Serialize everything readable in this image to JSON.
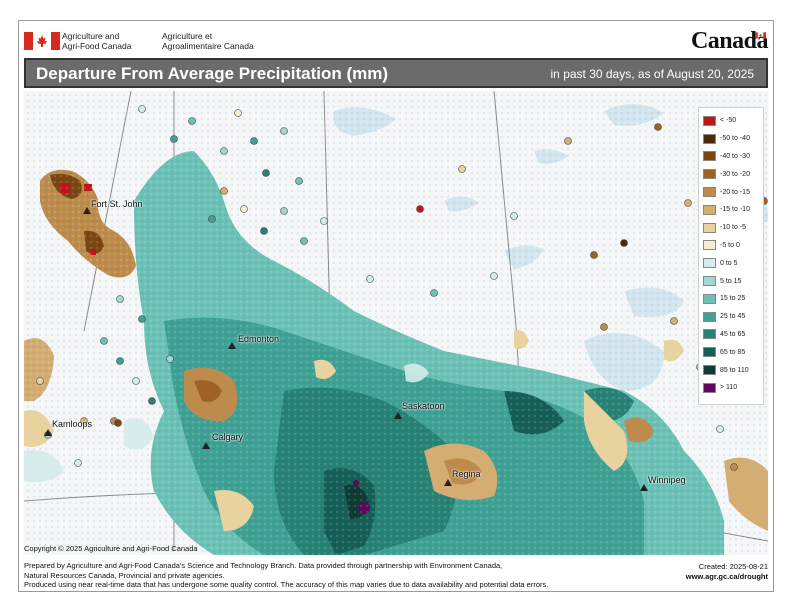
{
  "header": {
    "agency_en_line1": "Agriculture and",
    "agency_en_line2": "Agri-Food Canada",
    "agency_fr_line1": "Agriculture et",
    "agency_fr_line2": "Agroalimentaire Canada",
    "wordmark": "Canada"
  },
  "map": {
    "title": "Departure From Average Precipitation (mm)",
    "subtitle": "in past 30 days, as of August 20, 2025",
    "cities": [
      {
        "name": "Fort St. John"
      },
      {
        "name": "Edmonton"
      },
      {
        "name": "Kamloops"
      },
      {
        "name": "Calgary"
      },
      {
        "name": "Saskatoon"
      },
      {
        "name": "Regina"
      },
      {
        "name": "Winnipeg"
      }
    ]
  },
  "legend": {
    "items": [
      {
        "label": "< -50",
        "color": "#c0141b"
      },
      {
        "label": "-50 to -40",
        "color": "#4a2a0f"
      },
      {
        "label": "-40 to -30",
        "color": "#7a4612"
      },
      {
        "label": "-30 to -20",
        "color": "#9e6226"
      },
      {
        "label": "-20 to -15",
        "color": "#bd8b4c"
      },
      {
        "label": "-15 to -10",
        "color": "#d3ad72"
      },
      {
        "label": "-10 to -5",
        "color": "#e8d39f"
      },
      {
        "label": "-5 to 0",
        "color": "#f5ecd2"
      },
      {
        "label": "0 to 5",
        "color": "#d4ecea"
      },
      {
        "label": "5 to 15",
        "color": "#9fd8d1"
      },
      {
        "label": "15 to 25",
        "color": "#6cc1b6"
      },
      {
        "label": "25 to 45",
        "color": "#3fa194"
      },
      {
        "label": "45 to 65",
        "color": "#278175"
      },
      {
        "label": "65 to 85",
        "color": "#165f56"
      },
      {
        "label": "85 to 110",
        "color": "#0e3b34"
      },
      {
        "label": "> 110",
        "color": "#5d0a5b"
      }
    ]
  },
  "footer": {
    "copyright": "Copyright © 2025 Agriculture and Agri-Food Canada",
    "line1": "Prepared by Agriculture and Agri-Food Canada's Science and Technology Branch. Data provided through partnership with Environment Canada,",
    "line2": "Natural Resources Canada, Provincial and private agencies.",
    "line3": "Produced using near real-time data that has undergone some quality control. The accuracy of this map varies due to data availability and potential data errors.",
    "created": "Created: 2025-08-21",
    "url": "www.agr.gc.ca/drought"
  }
}
